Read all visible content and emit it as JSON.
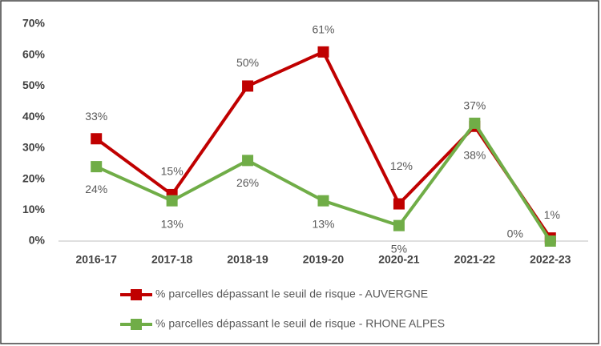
{
  "chart_data": {
    "type": "line",
    "categories": [
      "2016-17",
      "2017-18",
      "2018-19",
      "2019-20",
      "2020-21",
      "2021-22",
      "2022-23"
    ],
    "series": [
      {
        "name": "% parcelles dépassant le seuil de risque - AUVERGNE",
        "color": "#c00000",
        "values": [
          33,
          15,
          50,
          61,
          12,
          37,
          1
        ],
        "value_labels": [
          "33%",
          "15%",
          "50%",
          "61%",
          "12%",
          "37%",
          "1%"
        ]
      },
      {
        "name": "% parcelles dépassant le seuil de risque - RHONE ALPES",
        "color": "#70ad47",
        "values": [
          24,
          13,
          26,
          13,
          5,
          38,
          0
        ],
        "value_labels": [
          "24%",
          "13%",
          "26%",
          "13%",
          "5%",
          "38%",
          "0%"
        ]
      }
    ],
    "ylim": [
      0,
      70
    ],
    "yticks": [
      {
        "value": 0,
        "label": "0%"
      },
      {
        "value": 10,
        "label": "10%"
      },
      {
        "value": 20,
        "label": "20%"
      },
      {
        "value": 30,
        "label": "30%"
      },
      {
        "value": 40,
        "label": "40%"
      },
      {
        "value": 50,
        "label": "50%"
      },
      {
        "value": 60,
        "label": "60%"
      },
      {
        "value": 70,
        "label": "70%"
      }
    ],
    "grid": false,
    "legend": "bottom"
  }
}
